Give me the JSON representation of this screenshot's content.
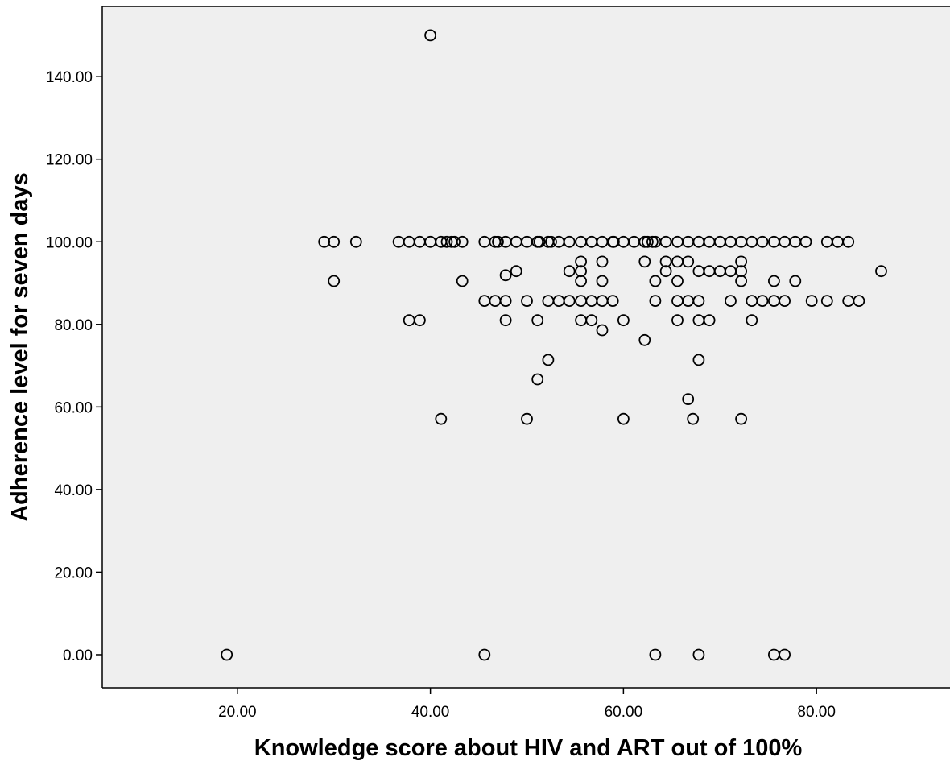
{
  "chart_data": {
    "type": "scatter",
    "xlabel": "Knowledge score about HIV and ART out of 100%",
    "ylabel": "Adherence level for seven days",
    "xlim": [
      6,
      94
    ],
    "ylim": [
      -8,
      157
    ],
    "x_ticks": [
      20,
      40,
      60,
      80
    ],
    "x_tick_labels": [
      "20.00",
      "40.00",
      "60.00",
      "80.00"
    ],
    "y_ticks": [
      0,
      20,
      40,
      60,
      80,
      100,
      120,
      140
    ],
    "y_tick_labels": [
      "0.00",
      "20.00",
      "40.00",
      "60.00",
      "80.00",
      "100.00",
      "120.00",
      "140.00"
    ],
    "grid": false,
    "colors": {
      "plot_background": "#efefef",
      "marker": "#000000"
    },
    "points": [
      [
        40.0,
        150.0
      ],
      [
        29.0,
        100.0
      ],
      [
        30.0,
        100.0
      ],
      [
        32.3,
        100.0
      ],
      [
        36.7,
        100.0
      ],
      [
        37.8,
        100.0
      ],
      [
        38.9,
        100.0
      ],
      [
        40.0,
        100.0
      ],
      [
        41.1,
        100.0
      ],
      [
        41.7,
        100.0
      ],
      [
        42.2,
        100.0
      ],
      [
        42.5,
        100.0
      ],
      [
        43.3,
        100.0
      ],
      [
        45.6,
        100.0
      ],
      [
        46.7,
        100.0
      ],
      [
        47.0,
        100.0
      ],
      [
        47.8,
        100.0
      ],
      [
        48.9,
        100.0
      ],
      [
        50.0,
        100.0
      ],
      [
        51.1,
        100.0
      ],
      [
        51.3,
        100.0
      ],
      [
        52.2,
        100.0
      ],
      [
        52.5,
        100.0
      ],
      [
        53.3,
        100.0
      ],
      [
        54.4,
        100.0
      ],
      [
        55.6,
        100.0
      ],
      [
        56.7,
        100.0
      ],
      [
        57.8,
        100.0
      ],
      [
        58.9,
        100.0
      ],
      [
        59.0,
        100.0
      ],
      [
        60.0,
        100.0
      ],
      [
        61.1,
        100.0
      ],
      [
        62.2,
        100.0
      ],
      [
        62.5,
        100.0
      ],
      [
        63.0,
        100.0
      ],
      [
        63.3,
        100.0
      ],
      [
        64.4,
        100.0
      ],
      [
        65.6,
        100.0
      ],
      [
        66.7,
        100.0
      ],
      [
        67.8,
        100.0
      ],
      [
        68.9,
        100.0
      ],
      [
        70.0,
        100.0
      ],
      [
        71.1,
        100.0
      ],
      [
        72.2,
        100.0
      ],
      [
        73.3,
        100.0
      ],
      [
        74.4,
        100.0
      ],
      [
        75.6,
        100.0
      ],
      [
        76.7,
        100.0
      ],
      [
        77.8,
        100.0
      ],
      [
        78.9,
        100.0
      ],
      [
        81.1,
        100.0
      ],
      [
        82.2,
        100.0
      ],
      [
        83.3,
        100.0
      ],
      [
        55.6,
        95.2
      ],
      [
        57.8,
        95.2
      ],
      [
        62.2,
        95.2
      ],
      [
        64.4,
        95.2
      ],
      [
        65.6,
        95.2
      ],
      [
        66.7,
        95.2
      ],
      [
        72.2,
        95.2
      ],
      [
        48.9,
        92.9
      ],
      [
        54.4,
        92.9
      ],
      [
        55.6,
        92.9
      ],
      [
        64.4,
        92.9
      ],
      [
        67.8,
        92.9
      ],
      [
        68.9,
        92.9
      ],
      [
        70.0,
        92.9
      ],
      [
        71.1,
        92.9
      ],
      [
        72.2,
        92.9
      ],
      [
        86.7,
        92.9
      ],
      [
        47.8,
        91.9
      ],
      [
        30.0,
        90.5
      ],
      [
        43.3,
        90.5
      ],
      [
        55.6,
        90.5
      ],
      [
        57.8,
        90.5
      ],
      [
        63.3,
        90.5
      ],
      [
        65.6,
        90.5
      ],
      [
        72.2,
        90.5
      ],
      [
        75.6,
        90.5
      ],
      [
        77.8,
        90.5
      ],
      [
        45.6,
        85.7
      ],
      [
        46.7,
        85.7
      ],
      [
        47.8,
        85.7
      ],
      [
        50.0,
        85.7
      ],
      [
        52.2,
        85.7
      ],
      [
        53.3,
        85.7
      ],
      [
        54.4,
        85.7
      ],
      [
        55.6,
        85.7
      ],
      [
        56.7,
        85.7
      ],
      [
        57.8,
        85.7
      ],
      [
        58.9,
        85.7
      ],
      [
        63.3,
        85.7
      ],
      [
        65.6,
        85.7
      ],
      [
        66.7,
        85.7
      ],
      [
        67.8,
        85.7
      ],
      [
        71.1,
        85.7
      ],
      [
        73.3,
        85.7
      ],
      [
        74.4,
        85.7
      ],
      [
        75.6,
        85.7
      ],
      [
        76.7,
        85.7
      ],
      [
        79.5,
        85.7
      ],
      [
        81.1,
        85.7
      ],
      [
        83.3,
        85.7
      ],
      [
        84.4,
        85.7
      ],
      [
        37.8,
        81.0
      ],
      [
        38.9,
        81.0
      ],
      [
        47.8,
        81.0
      ],
      [
        51.1,
        81.0
      ],
      [
        55.6,
        81.0
      ],
      [
        56.7,
        81.0
      ],
      [
        60.0,
        81.0
      ],
      [
        65.6,
        81.0
      ],
      [
        67.8,
        81.0
      ],
      [
        68.9,
        81.0
      ],
      [
        73.3,
        81.0
      ],
      [
        57.8,
        78.6
      ],
      [
        62.2,
        76.2
      ],
      [
        52.2,
        71.4
      ],
      [
        67.8,
        71.4
      ],
      [
        51.1,
        66.7
      ],
      [
        66.7,
        61.9
      ],
      [
        41.1,
        57.1
      ],
      [
        50.0,
        57.1
      ],
      [
        60.0,
        57.1
      ],
      [
        67.2,
        57.1
      ],
      [
        72.2,
        57.1
      ],
      [
        18.9,
        0.0
      ],
      [
        45.6,
        0.0
      ],
      [
        63.3,
        0.0
      ],
      [
        67.8,
        0.0
      ],
      [
        75.6,
        0.0
      ],
      [
        76.7,
        0.0
      ]
    ]
  }
}
